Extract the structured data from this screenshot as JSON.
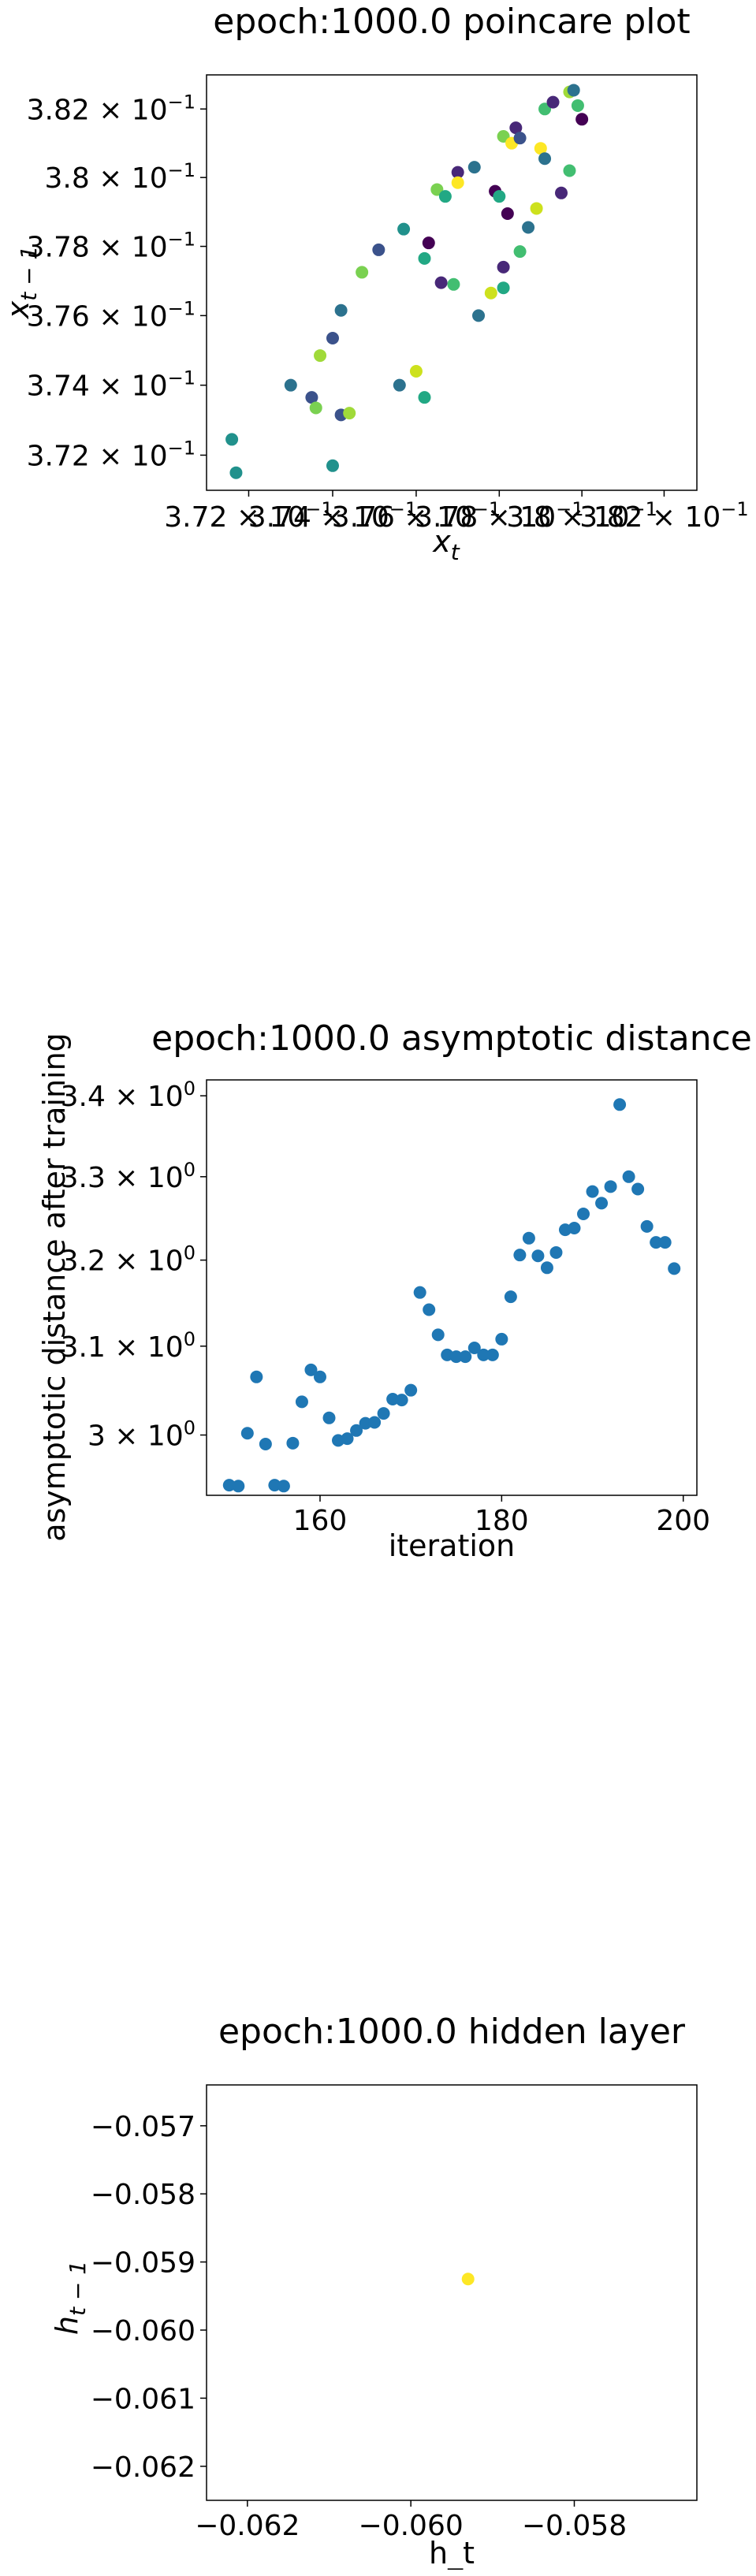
{
  "chart_data": [
    {
      "type": "scatter",
      "title": "epoch:1000.0 poincare plot",
      "xlabel_main": "x",
      "xlabel_sub": "t",
      "ylabel_main": "x",
      "ylabel_sub": "t − 1",
      "log_scale": true,
      "xlim": [
        0.371,
        0.3828
      ],
      "ylim": [
        0.371,
        0.383
      ],
      "xticks": [
        {
          "value": 0.372,
          "mant": "3.72 × 10",
          "exp": "−1"
        },
        {
          "value": 0.374,
          "mant": "3.74 × 10",
          "exp": "−1"
        },
        {
          "value": 0.376,
          "mant": "3.76 × 10",
          "exp": "−1"
        },
        {
          "value": 0.378,
          "mant": "3.78 × 10",
          "exp": "−1"
        },
        {
          "value": 0.38,
          "mant": "3.8 × 10",
          "exp": "−1"
        },
        {
          "value": 0.382,
          "mant": "3.82 × 10",
          "exp": "−1"
        }
      ],
      "yticks": [
        {
          "value": 0.372,
          "mant": "3.72 × 10",
          "exp": "−1"
        },
        {
          "value": 0.374,
          "mant": "3.74 × 10",
          "exp": "−1"
        },
        {
          "value": 0.376,
          "mant": "3.76 × 10",
          "exp": "−1"
        },
        {
          "value": 0.378,
          "mant": "3.78 × 10",
          "exp": "−1"
        },
        {
          "value": 0.38,
          "mant": "3.8 × 10",
          "exp": "−1"
        },
        {
          "value": 0.382,
          "mant": "3.82 × 10",
          "exp": "−1"
        }
      ],
      "points": [
        {
          "x": 0.3716,
          "y": 0.37245,
          "c": "#21918c"
        },
        {
          "x": 0.3717,
          "y": 0.3715,
          "c": "#21918c"
        },
        {
          "x": 0.373,
          "y": 0.374,
          "c": "#2c728e"
        },
        {
          "x": 0.3735,
          "y": 0.37365,
          "c": "#3b528b"
        },
        {
          "x": 0.3736,
          "y": 0.37335,
          "c": "#7ad151"
        },
        {
          "x": 0.3737,
          "y": 0.37485,
          "c": "#a0da39"
        },
        {
          "x": 0.374,
          "y": 0.37535,
          "c": "#3b528b"
        },
        {
          "x": 0.374,
          "y": 0.3717,
          "c": "#21918c"
        },
        {
          "x": 0.3742,
          "y": 0.37615,
          "c": "#2c728e"
        },
        {
          "x": 0.3742,
          "y": 0.37315,
          "c": "#3b528b"
        },
        {
          "x": 0.3744,
          "y": 0.3732,
          "c": "#a0da39"
        },
        {
          "x": 0.3747,
          "y": 0.37725,
          "c": "#7ad151"
        },
        {
          "x": 0.3751,
          "y": 0.3779,
          "c": "#3b528b"
        },
        {
          "x": 0.3756,
          "y": 0.374,
          "c": "#2c728e"
        },
        {
          "x": 0.3757,
          "y": 0.3785,
          "c": "#21918c"
        },
        {
          "x": 0.376,
          "y": 0.3744,
          "c": "#cde11d"
        },
        {
          "x": 0.3762,
          "y": 0.37365,
          "c": "#22a884"
        },
        {
          "x": 0.3762,
          "y": 0.37765,
          "c": "#22a884"
        },
        {
          "x": 0.3763,
          "y": 0.3781,
          "c": "#440154"
        },
        {
          "x": 0.3765,
          "y": 0.37965,
          "c": "#7ad151"
        },
        {
          "x": 0.3766,
          "y": 0.37695,
          "c": "#482878"
        },
        {
          "x": 0.3767,
          "y": 0.37945,
          "c": "#22a884"
        },
        {
          "x": 0.3769,
          "y": 0.3769,
          "c": "#42be71"
        },
        {
          "x": 0.377,
          "y": 0.38015,
          "c": "#482878"
        },
        {
          "x": 0.377,
          "y": 0.37985,
          "c": "#fde725"
        },
        {
          "x": 0.3774,
          "y": 0.3803,
          "c": "#2c728e"
        },
        {
          "x": 0.3775,
          "y": 0.376,
          "c": "#2c728e"
        },
        {
          "x": 0.3778,
          "y": 0.37665,
          "c": "#cde11d"
        },
        {
          "x": 0.3779,
          "y": 0.3796,
          "c": "#440154"
        },
        {
          "x": 0.378,
          "y": 0.37945,
          "c": "#22a884"
        },
        {
          "x": 0.3781,
          "y": 0.3768,
          "c": "#22a884"
        },
        {
          "x": 0.3781,
          "y": 0.3774,
          "c": "#482878"
        },
        {
          "x": 0.3781,
          "y": 0.3812,
          "c": "#7ad151"
        },
        {
          "x": 0.3782,
          "y": 0.37895,
          "c": "#440154"
        },
        {
          "x": 0.3783,
          "y": 0.381,
          "c": "#fde725"
        },
        {
          "x": 0.3784,
          "y": 0.38145,
          "c": "#482878"
        },
        {
          "x": 0.3785,
          "y": 0.37785,
          "c": "#42be71"
        },
        {
          "x": 0.3785,
          "y": 0.38115,
          "c": "#3b528b"
        },
        {
          "x": 0.3787,
          "y": 0.37855,
          "c": "#2c728e"
        },
        {
          "x": 0.3789,
          "y": 0.3791,
          "c": "#cde11d"
        },
        {
          "x": 0.379,
          "y": 0.38085,
          "c": "#fde725"
        },
        {
          "x": 0.3791,
          "y": 0.38055,
          "c": "#2c728e"
        },
        {
          "x": 0.3791,
          "y": 0.382,
          "c": "#42be71"
        },
        {
          "x": 0.3793,
          "y": 0.3822,
          "c": "#482878"
        },
        {
          "x": 0.3795,
          "y": 0.37955,
          "c": "#482878"
        },
        {
          "x": 0.3797,
          "y": 0.3825,
          "c": "#a0da39"
        },
        {
          "x": 0.3797,
          "y": 0.3802,
          "c": "#42be71"
        },
        {
          "x": 0.3798,
          "y": 0.38255,
          "c": "#2c728e"
        },
        {
          "x": 0.3799,
          "y": 0.3821,
          "c": "#42be71"
        },
        {
          "x": 0.38,
          "y": 0.3817,
          "c": "#440154"
        }
      ]
    },
    {
      "type": "scatter",
      "title": "epoch:1000.0 asymptotic distance",
      "xlabel": "iteration",
      "ylabel": "asymptotic distance after training",
      "log_scale_y": true,
      "xlim": [
        147.5,
        201.5
      ],
      "ylim": [
        2.934,
        3.42
      ],
      "xticks": [
        {
          "value": 160,
          "label": "160"
        },
        {
          "value": 180,
          "label": "180"
        },
        {
          "value": 200,
          "label": "200"
        }
      ],
      "yticks": [
        {
          "value": 3.0,
          "mant": "3 × 10",
          "exp": "0"
        },
        {
          "value": 3.1,
          "mant": "3.1 × 10",
          "exp": "0"
        },
        {
          "value": 3.2,
          "mant": "3.2 × 10",
          "exp": "0"
        },
        {
          "value": 3.3,
          "mant": "3.3 × 10",
          "exp": "0"
        },
        {
          "value": 3.4,
          "mant": "3.4 × 10",
          "exp": "0"
        }
      ],
      "color": "#1f77b4",
      "x": [
        150,
        151,
        152,
        153,
        154,
        155,
        156,
        157,
        158,
        159,
        160,
        161,
        162,
        163,
        164,
        165,
        166,
        167,
        168,
        169,
        170,
        171,
        172,
        173,
        174,
        175,
        176,
        177,
        178,
        179,
        180,
        181,
        182,
        183,
        184,
        185,
        186,
        187,
        188,
        189,
        190,
        191,
        192,
        193,
        194,
        195,
        196,
        197,
        198,
        199
      ],
      "y": [
        2.945,
        2.944,
        3.002,
        3.065,
        2.99,
        2.945,
        2.944,
        2.991,
        3.037,
        3.073,
        3.065,
        3.019,
        2.994,
        2.996,
        3.005,
        3.013,
        3.014,
        3.024,
        3.04,
        3.039,
        3.05,
        3.162,
        3.142,
        3.113,
        3.09,
        3.088,
        3.088,
        3.098,
        3.09,
        3.09,
        3.108,
        3.157,
        3.206,
        3.226,
        3.205,
        3.191,
        3.209,
        3.236,
        3.238,
        3.255,
        3.282,
        3.268,
        3.288,
        3.389,
        3.3,
        3.285,
        3.24,
        3.221,
        3.221,
        3.19
      ]
    },
    {
      "type": "scatter",
      "title": "epoch:1000.0 hidden layer",
      "xlabel": "h_t",
      "ylabel_main": "h",
      "ylabel_sub": "t − 1",
      "xlim": [
        -0.0625,
        -0.0565
      ],
      "ylim": [
        -0.0625,
        -0.0564
      ],
      "xticks": [
        {
          "value": -0.062,
          "label": "−0.062"
        },
        {
          "value": -0.06,
          "label": "−0.060"
        },
        {
          "value": -0.058,
          "label": "−0.058"
        }
      ],
      "yticks": [
        {
          "value": -0.057,
          "label": "−0.057"
        },
        {
          "value": -0.058,
          "label": "−0.058"
        },
        {
          "value": -0.059,
          "label": "−0.059"
        },
        {
          "value": -0.06,
          "label": "−0.060"
        },
        {
          "value": -0.061,
          "label": "−0.061"
        },
        {
          "value": -0.062,
          "label": "−0.062"
        }
      ],
      "points": [
        {
          "x": -0.0593,
          "y": -0.05925,
          "c": "#fde725"
        }
      ]
    }
  ]
}
